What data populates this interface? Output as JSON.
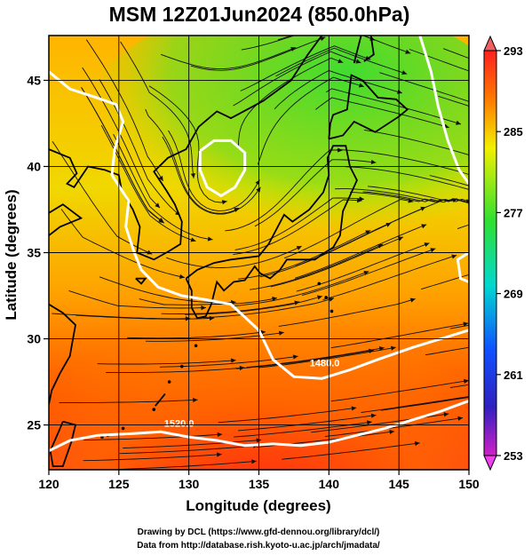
{
  "title": "MSM 12Z01Jun2024 (850.0hPa)",
  "x_axis": {
    "label": "Longitude (degrees)",
    "range": [
      120,
      150
    ],
    "ticks": [
      "120",
      "125",
      "130",
      "135",
      "140",
      "145",
      "150"
    ]
  },
  "y_axis": {
    "label": "Latitude  (degrees)",
    "range": [
      22.4,
      47.6
    ],
    "ticks": [
      "25",
      "30",
      "35",
      "40",
      "45"
    ]
  },
  "colorbar": {
    "ticks": [
      "293",
      "285",
      "277",
      "269",
      "261",
      "253"
    ],
    "range": [
      253,
      293
    ],
    "colors": {
      "top": "#ff2020",
      "upper": "#ffa000",
      "mid_warm": "#f0f000",
      "mid": "#30e030",
      "mid_cool": "#00d8d0",
      "lower": "#1050ff",
      "bottom": "#d020c8",
      "end_top": "#f06060",
      "end_bottom": "#f040f0"
    }
  },
  "contour_labels": [
    "1480.0",
    "1520.0"
  ],
  "credits": [
    "Drawing by DCL (https://www.gfd-dennou.org/library/dcl/)",
    "Data from http://database.rish.kyoto-u.ac.jp/arch/jmadata/"
  ]
}
